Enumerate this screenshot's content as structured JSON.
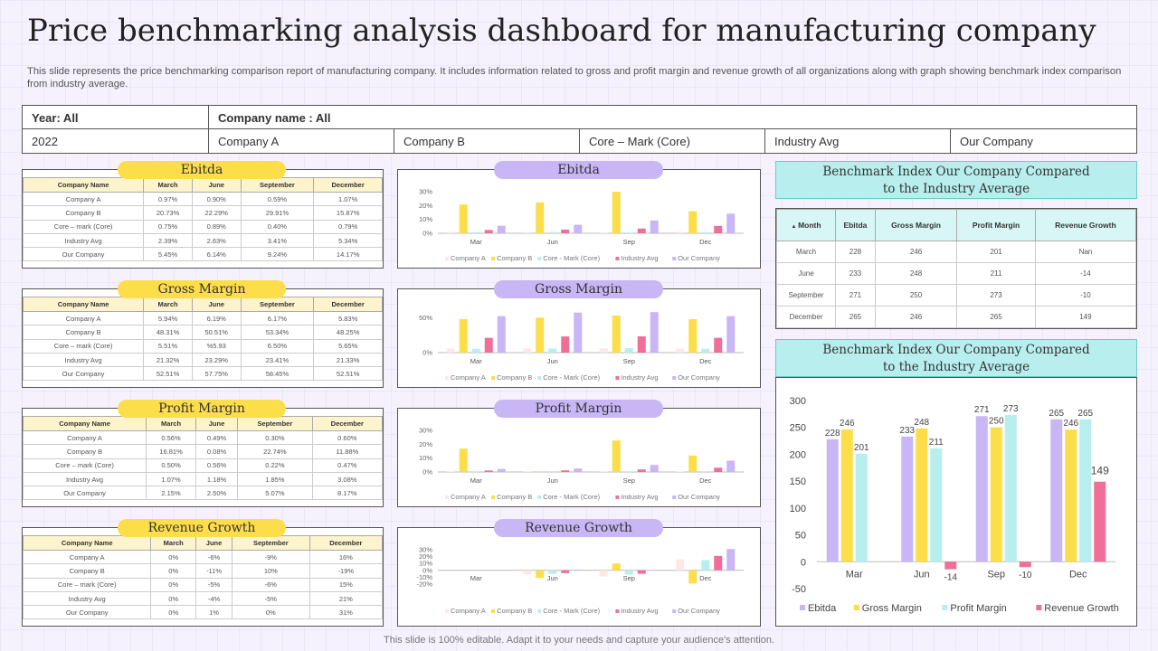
{
  "title": "Price benchmarking analysis dashboard for manufacturing company",
  "description": "This slide represents the price benchmarking comparison report of manufacturing company. It includes information related to gross and profit margin and revenue growth of all organizations along with graph showing benchmark index comparison from industry average.",
  "filter": {
    "year_label": "Year: All",
    "company_label": "Company name : All",
    "options": [
      "2022",
      "Company A",
      "Company B",
      "Core – Mark (Core)",
      "Industry Avg",
      "Our Company"
    ]
  },
  "footer": "This slide is 100% editable. Adapt it to your needs and capture your audience's attention.",
  "colors": {
    "company_a": "#fde8e8",
    "company_b": "#fcdd4a",
    "core": "#b8eeee",
    "industry": "#ef6f9a",
    "our": "#c8b6f5"
  },
  "table_columns": [
    "Company Name",
    "March",
    "June",
    "September",
    "December"
  ],
  "tables": [
    {
      "title": "Ebitda",
      "rows": [
        [
          "Company A",
          "0.97%",
          "0.90%",
          "0.59%",
          "1.07%"
        ],
        [
          "Company B",
          "20.73%",
          "22.29%",
          "29.91%",
          "15.87%"
        ],
        [
          "Core – mark (Core)",
          "0.75%",
          "0.89%",
          "0.40%",
          "0.79%"
        ],
        [
          "Industry Avg",
          "2.39%",
          "2.63%",
          "3.41%",
          "5.34%"
        ],
        [
          "Our Company",
          "5.45%",
          "6.14%",
          "9.24%",
          "14.17%"
        ]
      ]
    },
    {
      "title": "Gross Margin",
      "rows": [
        [
          "Company A",
          "5.94%",
          "6.19%",
          "6.17%",
          "5.83%"
        ],
        [
          "Company B",
          "48.31%",
          "50.51%",
          "53.34%",
          "48.25%"
        ],
        [
          "Core – mark (Core)",
          "5.51%",
          "%5.93",
          "6.50%",
          "5.65%"
        ],
        [
          "Industry Avg",
          "21.32%",
          "23.29%",
          "23.41%",
          "21.33%"
        ],
        [
          "Our Company",
          "52.51%",
          "57.75%",
          "58.45%",
          "52.51%"
        ]
      ]
    },
    {
      "title": "Profit Margin",
      "rows": [
        [
          "Company A",
          "0.56%",
          "0.49%",
          "0.30%",
          "0.60%"
        ],
        [
          "Company B",
          "16.81%",
          "0.08%",
          "22.74%",
          "11.88%"
        ],
        [
          "Core – mark (Core)",
          "0.50%",
          "0.56%",
          "0.22%",
          "0.47%"
        ],
        [
          "Industry Avg",
          "1.07%",
          "1.18%",
          "1.85%",
          "3.08%"
        ],
        [
          "Our Company",
          "2.15%",
          "2.50%",
          "5.07%",
          "8.17%"
        ]
      ]
    },
    {
      "title": "Revenue Growth",
      "rows": [
        [
          "Company A",
          "0%",
          "-6%",
          "-9%",
          "16%"
        ],
        [
          "Company B",
          "0%",
          "-11%",
          "10%",
          "-19%"
        ],
        [
          "Core – mark (Core)",
          "0%",
          "-5%",
          "-6%",
          "15%"
        ],
        [
          "Industry Avg",
          "0%",
          "-4%",
          "-5%",
          "21%"
        ],
        [
          "Our Company",
          "0%",
          "1%",
          "0%",
          "31%"
        ]
      ]
    }
  ],
  "benchmark": {
    "title_line1": "Benchmark Index Our Company Compared",
    "title_line2": "to the Industry Average",
    "columns": [
      "Month",
      "Ebitda",
      "Gross Margin",
      "Profit Margin",
      "Revenue Growth"
    ],
    "rows": [
      [
        "March",
        "228",
        "246",
        "201",
        "Nan"
      ],
      [
        "June",
        "233",
        "248",
        "211",
        "-14"
      ],
      [
        "September",
        "271",
        "250",
        "273",
        "-10"
      ],
      [
        "December",
        "265",
        "246",
        "265",
        "149"
      ]
    ]
  },
  "chart_data": [
    {
      "type": "bar",
      "title": "Ebitda",
      "categories": [
        "Mar",
        "Jun",
        "Sep",
        "Dec"
      ],
      "yticks": [
        "30%",
        "20%",
        "10%",
        "0%"
      ],
      "ylim": [
        0,
        30
      ],
      "series": [
        {
          "name": "Company A",
          "values": [
            0.97,
            0.9,
            0.59,
            1.07
          ]
        },
        {
          "name": "Company B",
          "values": [
            20.73,
            22.29,
            29.91,
            15.87
          ]
        },
        {
          "name": "Core - Mark (Core)",
          "values": [
            0.75,
            0.89,
            0.4,
            0.79
          ]
        },
        {
          "name": "Industry Avg",
          "values": [
            2.39,
            2.63,
            3.41,
            5.34
          ]
        },
        {
          "name": "Our Company",
          "values": [
            5.45,
            6.14,
            9.24,
            14.17
          ]
        }
      ]
    },
    {
      "type": "bar",
      "title": "Gross Margin",
      "categories": [
        "Mar",
        "Jun",
        "Sep",
        "Dec"
      ],
      "yticks": [
        "50%",
        "0%"
      ],
      "ylim": [
        0,
        60
      ],
      "series": [
        {
          "name": "Company A",
          "values": [
            5.94,
            6.19,
            6.17,
            5.83
          ]
        },
        {
          "name": "Company B",
          "values": [
            48.31,
            50.51,
            53.34,
            48.25
          ]
        },
        {
          "name": "Core - Mark (Core)",
          "values": [
            5.51,
            5.93,
            6.5,
            5.65
          ]
        },
        {
          "name": "Industry Avg",
          "values": [
            21.32,
            23.29,
            23.41,
            21.33
          ]
        },
        {
          "name": "Our Company",
          "values": [
            52.51,
            57.75,
            58.45,
            52.51
          ]
        }
      ]
    },
    {
      "type": "bar",
      "title": "Profit Margin",
      "categories": [
        "Mar",
        "Jun",
        "Sep",
        "Dec"
      ],
      "yticks": [
        "30%",
        "20%",
        "10%",
        "0%"
      ],
      "ylim": [
        0,
        30
      ],
      "series": [
        {
          "name": "Company A",
          "values": [
            0.56,
            0.49,
            0.3,
            0.6
          ]
        },
        {
          "name": "Company B",
          "values": [
            16.81,
            0.08,
            22.74,
            11.88
          ]
        },
        {
          "name": "Core - Mark (Core)",
          "values": [
            0.5,
            0.56,
            0.22,
            0.47
          ]
        },
        {
          "name": "Industry Avg",
          "values": [
            1.07,
            1.18,
            1.85,
            3.08
          ]
        },
        {
          "name": "Our Company",
          "values": [
            2.15,
            2.5,
            5.07,
            8.17
          ]
        }
      ]
    },
    {
      "type": "bar",
      "title": "Revenue Growth",
      "categories": [
        "Mar",
        "Jun",
        "Sep",
        "Dec"
      ],
      "yticks": [
        "30%",
        "20%",
        "10%",
        "0%",
        "-10%",
        "-20%"
      ],
      "ylim": [
        -20,
        30
      ],
      "series": [
        {
          "name": "Company A",
          "values": [
            0,
            -6,
            -9,
            16
          ]
        },
        {
          "name": "Company B",
          "values": [
            0,
            -11,
            10,
            -19
          ]
        },
        {
          "name": "Core - Mark (Core)",
          "values": [
            0,
            -5,
            -6,
            15
          ]
        },
        {
          "name": "Industry Avg",
          "values": [
            0,
            -4,
            -5,
            21
          ]
        },
        {
          "name": "Our Company",
          "values": [
            0,
            1,
            0,
            31
          ]
        }
      ]
    },
    {
      "type": "bar",
      "title": "Benchmark Index Our Company Compared to the Industry Average",
      "categories": [
        "Mar",
        "Jun",
        "Sep",
        "Dec"
      ],
      "ylim": [
        -50,
        300
      ],
      "yticks": [
        "300",
        "250",
        "200",
        "150",
        "100",
        "50",
        "0",
        "-50"
      ],
      "series": [
        {
          "name": "Ebitda",
          "values": [
            228,
            233,
            271,
            265
          ]
        },
        {
          "name": "Gross Margin",
          "values": [
            246,
            248,
            250,
            246
          ]
        },
        {
          "name": "Profit Margin",
          "values": [
            201,
            211,
            273,
            265
          ]
        },
        {
          "name": "Revenue Growth",
          "values": [
            0,
            -14,
            -10,
            149
          ]
        }
      ],
      "series_colors": [
        "#c8b6f5",
        "#fcdd4a",
        "#b8eeee",
        "#ef6f9a"
      ],
      "labels": [
        [
          "228",
          "246",
          "201",
          ""
        ],
        [
          "233",
          "248",
          "211",
          "-14"
        ],
        [
          "271",
          "250",
          "273",
          "-10"
        ],
        [
          "265",
          "246",
          "265",
          "149"
        ]
      ],
      "legend": "bottom"
    }
  ]
}
